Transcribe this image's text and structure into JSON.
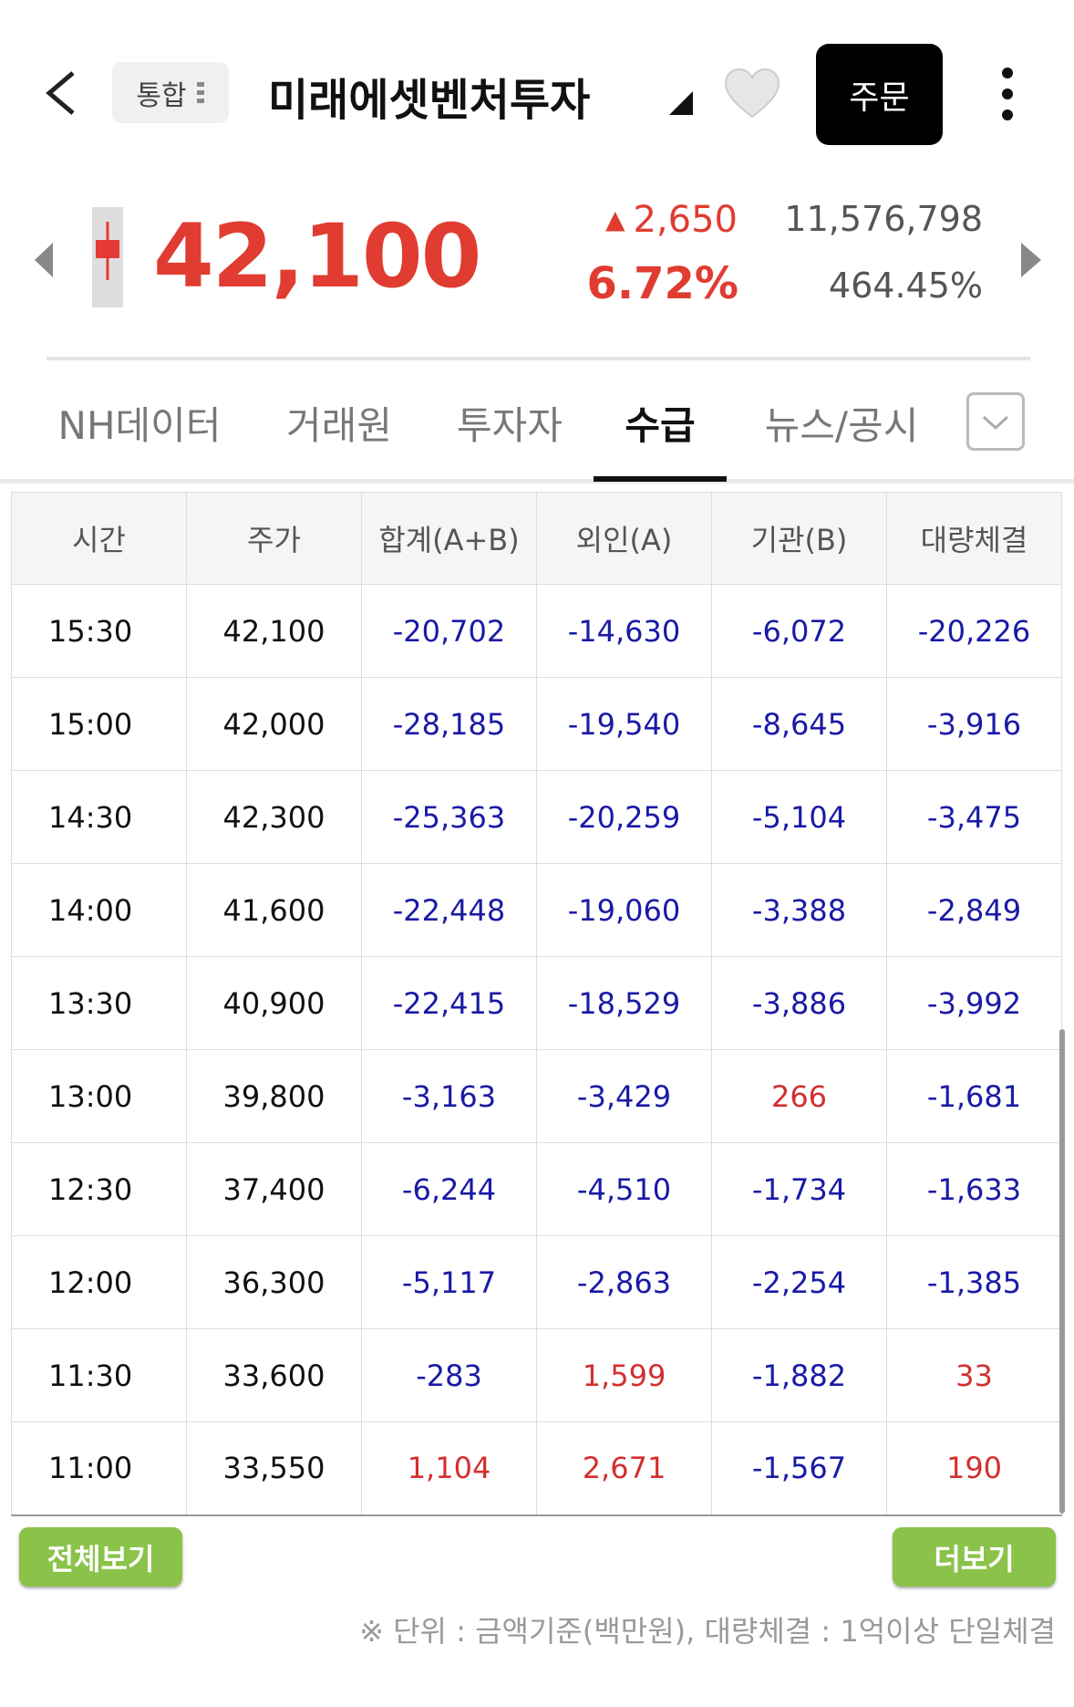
{
  "header": {
    "market": "통합",
    "stock_name": "미래에셋벤처투자",
    "order_button": "주문"
  },
  "quote": {
    "price": "42,100",
    "change": "2,650",
    "change_rate": "6.72%",
    "volume": "11,576,798",
    "volume_rate": "464.45%"
  },
  "tabs": [
    "NH데이터",
    "거래원",
    "투자자",
    "수급",
    "뉴스/공시"
  ],
  "active_tab": 3,
  "table": {
    "columns": [
      "시간",
      "주가",
      "합계(A+B)",
      "외인(A)",
      "기관(B)",
      "대량체결"
    ],
    "rows": [
      [
        "15:30",
        "42,100",
        "-20,702",
        "-14,630",
        "-6,072",
        "-20,226"
      ],
      [
        "15:00",
        "42,000",
        "-28,185",
        "-19,540",
        "-8,645",
        "-3,916"
      ],
      [
        "14:30",
        "42,300",
        "-25,363",
        "-20,259",
        "-5,104",
        "-3,475"
      ],
      [
        "14:00",
        "41,600",
        "-22,448",
        "-19,060",
        "-3,388",
        "-2,849"
      ],
      [
        "13:30",
        "40,900",
        "-22,415",
        "-18,529",
        "-3,886",
        "-3,992"
      ],
      [
        "13:00",
        "39,800",
        "-3,163",
        "-3,429",
        "266",
        "-1,681"
      ],
      [
        "12:30",
        "37,400",
        "-6,244",
        "-4,510",
        "-1,734",
        "-1,633"
      ],
      [
        "12:00",
        "36,300",
        "-5,117",
        "-2,863",
        "-2,254",
        "-1,385"
      ],
      [
        "11:30",
        "33,600",
        "-283",
        "1,599",
        "-1,882",
        "33"
      ],
      [
        "11:00",
        "33,550",
        "1,104",
        "2,671",
        "-1,567",
        "190"
      ]
    ]
  },
  "buttons": {
    "view_all": "전체보기",
    "more": "더보기"
  },
  "footnote": "※ 단위 : 금액기준(백만원), 대량체결 : 1억이상 단일체결"
}
